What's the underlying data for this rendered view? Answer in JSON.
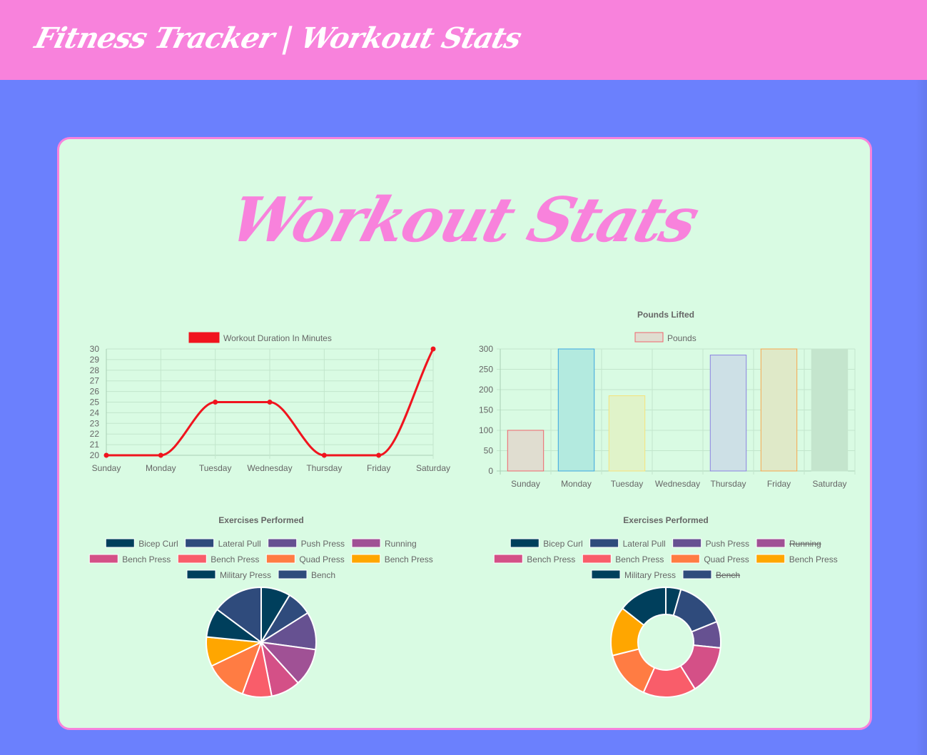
{
  "header": {
    "brand": "Fitness Tracker | Workout Stats"
  },
  "page": {
    "title": "Workout Stats"
  },
  "chart_data": [
    {
      "type": "line",
      "title": "",
      "legend": "Workout Duration In Minutes",
      "legend_color": "#f0141e",
      "color": "#f0141e",
      "categories": [
        "Sunday",
        "Monday",
        "Tuesday",
        "Wednesday",
        "Thursday",
        "Friday",
        "Saturday"
      ],
      "values": [
        20,
        20,
        25,
        25,
        20,
        20,
        30
      ],
      "ylim": [
        20,
        30
      ],
      "yticks": [
        "20",
        "21",
        "22",
        "23",
        "24",
        "25",
        "26",
        "27",
        "28",
        "29",
        "30"
      ],
      "grid": true
    },
    {
      "type": "bar",
      "title": "Pounds Lifted",
      "legend": "Pounds",
      "categories": [
        "Sunday",
        "Monday",
        "Tuesday",
        "Wednesday",
        "Thursday",
        "Friday",
        "Saturday"
      ],
      "values": [
        100,
        300,
        185,
        0,
        285,
        300,
        300
      ],
      "fills": [
        "#e0ddd0",
        "#b3eadf",
        "#e0f3c9",
        "#d9fbe3",
        "#cde0e6",
        "#dfe9c8",
        "#c4e5cd"
      ],
      "strokes": [
        "#f0646c",
        "#3aa5e0",
        "#f6e27a",
        "#d0d0d0",
        "#8a83e0",
        "#f7a64c",
        "#c4e5cd"
      ],
      "ylim": [
        0,
        300
      ],
      "yticks": [
        "0",
        "50",
        "100",
        "150",
        "200",
        "250",
        "300"
      ],
      "grid": true
    },
    {
      "type": "pie",
      "title": "Exercises Performed",
      "labels": [
        "Bicep Curl",
        "Lateral Pull",
        "Push Press",
        "Running",
        "Bench Press",
        "Bench Press",
        "Quad Press",
        "Bench Press",
        "Military Press",
        "Bench"
      ],
      "colors": [
        "#003f5c",
        "#2f4b7c",
        "#665191",
        "#a05195",
        "#d45087",
        "#f95d6a",
        "#ff7c43",
        "#ffa600",
        "#003f5c",
        "#2f4b7c"
      ],
      "values": [
        7,
        6,
        9,
        9,
        7,
        7,
        10,
        7,
        7,
        12
      ],
      "hidden": [
        false,
        false,
        false,
        false,
        false,
        false,
        false,
        false,
        false,
        false
      ]
    },
    {
      "type": "doughnut",
      "title": "Exercises Performed",
      "labels": [
        "Bicep Curl",
        "Lateral Pull",
        "Push Press",
        "Running",
        "Bench Press",
        "Bench Press",
        "Quad Press",
        "Bench Press",
        "Military Press",
        "Bench"
      ],
      "colors": [
        "#003f5c",
        "#2f4b7c",
        "#665191",
        "#a05195",
        "#d45087",
        "#f95d6a",
        "#ff7c43",
        "#ffa600",
        "#003f5c",
        "#2f4b7c"
      ],
      "values": [
        4,
        13,
        7,
        0,
        13,
        14,
        13,
        13,
        13,
        0
      ],
      "hidden": [
        false,
        false,
        false,
        true,
        false,
        false,
        false,
        false,
        false,
        true
      ]
    }
  ]
}
